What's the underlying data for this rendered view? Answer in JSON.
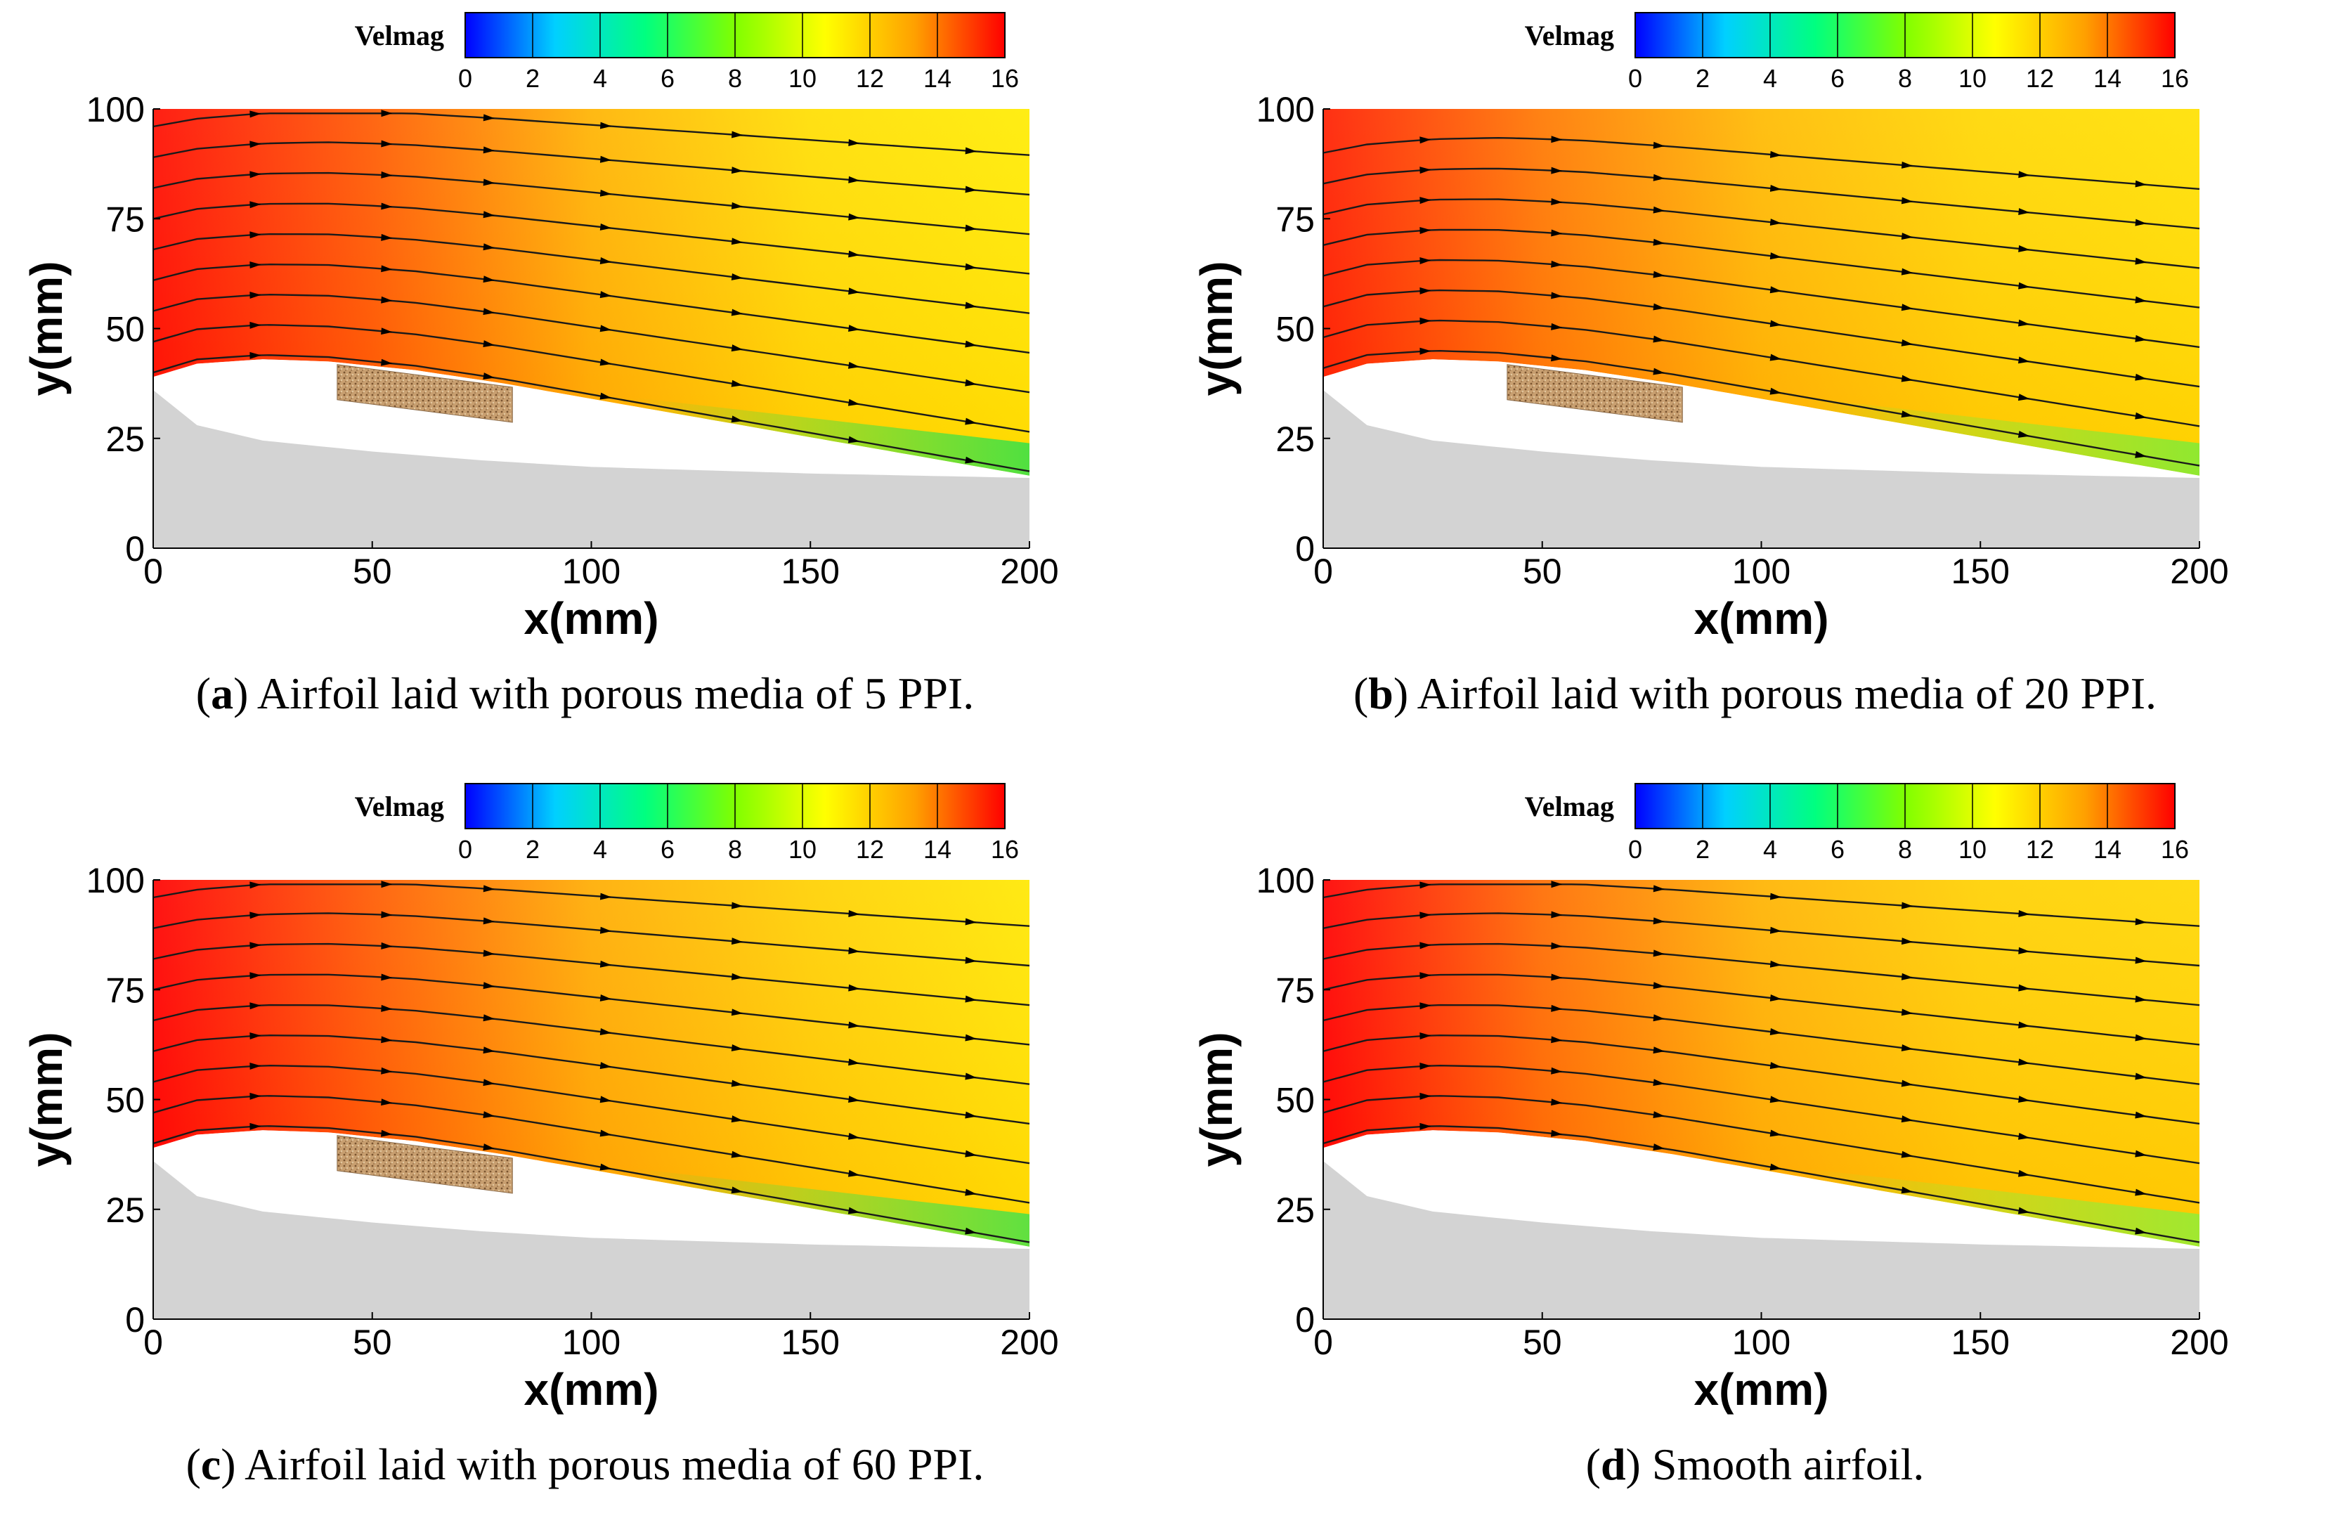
{
  "colormap": [
    "#0000ff",
    "#00d0ff",
    "#00ff80",
    "#80ff00",
    "#ffff00",
    "#ffa000",
    "#ff0000"
  ],
  "chart_data": [
    {
      "type": "heatmap",
      "id": "a",
      "caption_letter": "a",
      "caption_text": " Airfoil laid with porous media of 5 PPI.",
      "colorbar_title": "Velmag",
      "colorbar_range": [
        0,
        16
      ],
      "colorbar_ticks": [
        "0",
        "2",
        "4",
        "6",
        "8",
        "10",
        "12",
        "14",
        "16"
      ],
      "xlabel": "x(mm)",
      "ylabel": "y(mm)",
      "xlim": [
        0,
        200
      ],
      "ylim": [
        0,
        100
      ],
      "xticks": [
        "0",
        "50",
        "100",
        "150",
        "200"
      ],
      "yticks": [
        "0",
        "25",
        "50",
        "75",
        "100"
      ],
      "airfoil_upper_surface": {
        "x": [
          0,
          10,
          25,
          40,
          60,
          80,
          100,
          120,
          140,
          160,
          180,
          200
        ],
        "y": [
          39,
          42,
          43,
          42.5,
          40.5,
          37.5,
          34,
          30.5,
          27,
          23.5,
          20,
          16.5
        ]
      },
      "airfoil_lower_surface": {
        "x": [
          0,
          10,
          25,
          50,
          75,
          100,
          150,
          200
        ],
        "y": [
          36,
          28,
          24.5,
          22,
          20,
          18.5,
          17,
          16
        ]
      },
      "porous_insert": {
        "x_range": [
          42,
          82
        ],
        "thickness_mm": 8,
        "present": true
      },
      "low_speed_region_color": "#50e040",
      "streamline_y_start": [
        40,
        47,
        54,
        61,
        68,
        75,
        82,
        89,
        96
      ],
      "velocity_samples": [
        {
          "x": 0,
          "y": 45,
          "v": 15.8
        },
        {
          "x": 50,
          "y": 70,
          "v": 14.5
        },
        {
          "x": 100,
          "y": 80,
          "v": 12.8
        },
        {
          "x": 150,
          "y": 60,
          "v": 11.6
        },
        {
          "x": 190,
          "y": 95,
          "v": 11.2
        },
        {
          "x": 160,
          "y": 22,
          "v": 8.5
        }
      ]
    },
    {
      "type": "heatmap",
      "id": "b",
      "caption_letter": "b",
      "caption_text": " Airfoil laid with porous media of 20 PPI.",
      "colorbar_title": "Velmag",
      "colorbar_range": [
        0,
        16
      ],
      "colorbar_ticks": [
        "0",
        "2",
        "4",
        "6",
        "8",
        "10",
        "12",
        "14",
        "16"
      ],
      "xlabel": "x(mm)",
      "ylabel": "y(mm)",
      "xlim": [
        0,
        200
      ],
      "ylim": [
        0,
        100
      ],
      "xticks": [
        "0",
        "50",
        "100",
        "150",
        "200"
      ],
      "yticks": [
        "0",
        "25",
        "50",
        "75",
        "100"
      ],
      "airfoil_upper_surface": {
        "x": [
          0,
          10,
          25,
          40,
          60,
          80,
          100,
          120,
          140,
          160,
          180,
          200
        ],
        "y": [
          39,
          42,
          43,
          42.5,
          40.5,
          37.5,
          34,
          30.5,
          27,
          23.5,
          20,
          16.5
        ]
      },
      "airfoil_lower_surface": {
        "x": [
          0,
          10,
          25,
          50,
          75,
          100,
          150,
          200
        ],
        "y": [
          36,
          28,
          24.5,
          22,
          20,
          18.5,
          17,
          16
        ]
      },
      "porous_insert": {
        "x_range": [
          42,
          82
        ],
        "thickness_mm": 8,
        "present": true
      },
      "low_speed_region_color": "#90e830",
      "streamline_y_start": [
        41,
        48,
        55,
        62,
        69,
        76,
        83,
        90
      ],
      "velocity_samples": [
        {
          "x": 0,
          "y": 45,
          "v": 15.5
        },
        {
          "x": 50,
          "y": 70,
          "v": 14.0
        },
        {
          "x": 100,
          "y": 80,
          "v": 12.6
        },
        {
          "x": 150,
          "y": 60,
          "v": 11.8
        },
        {
          "x": 190,
          "y": 95,
          "v": 11.5
        },
        {
          "x": 160,
          "y": 22,
          "v": 9.5
        }
      ]
    },
    {
      "type": "heatmap",
      "id": "c",
      "caption_letter": "c",
      "caption_text": " Airfoil laid with porous media of 60 PPI.",
      "colorbar_title": "Velmag",
      "colorbar_range": [
        0,
        16
      ],
      "colorbar_ticks": [
        "0",
        "2",
        "4",
        "6",
        "8",
        "10",
        "12",
        "14",
        "16"
      ],
      "xlabel": "x(mm)",
      "ylabel": "y(mm)",
      "xlim": [
        0,
        200
      ],
      "ylim": [
        0,
        100
      ],
      "xticks": [
        "0",
        "50",
        "100",
        "150",
        "200"
      ],
      "yticks": [
        "0",
        "25",
        "50",
        "75",
        "100"
      ],
      "airfoil_upper_surface": {
        "x": [
          0,
          10,
          25,
          40,
          60,
          80,
          100,
          120,
          140,
          160,
          180,
          200
        ],
        "y": [
          39,
          42,
          43,
          42.5,
          40.5,
          37.5,
          34,
          30.5,
          27,
          23.5,
          20,
          16.5
        ]
      },
      "airfoil_lower_surface": {
        "x": [
          0,
          10,
          25,
          50,
          75,
          100,
          150,
          200
        ],
        "y": [
          36,
          28,
          24.5,
          22,
          20,
          18.5,
          17,
          16
        ]
      },
      "porous_insert": {
        "x_range": [
          42,
          82
        ],
        "thickness_mm": 8,
        "present": true
      },
      "low_speed_region_color": "#60e040",
      "streamline_y_start": [
        40,
        47,
        54,
        61,
        68,
        75,
        82,
        89,
        96
      ],
      "velocity_samples": [
        {
          "x": 0,
          "y": 45,
          "v": 16.0
        },
        {
          "x": 50,
          "y": 70,
          "v": 14.5
        },
        {
          "x": 100,
          "y": 80,
          "v": 13.0
        },
        {
          "x": 150,
          "y": 60,
          "v": 12.0
        },
        {
          "x": 190,
          "y": 95,
          "v": 11.3
        },
        {
          "x": 160,
          "y": 22,
          "v": 9.0
        }
      ]
    },
    {
      "type": "heatmap",
      "id": "d",
      "caption_letter": "d",
      "caption_text": " Smooth airfoil.",
      "colorbar_title": "Velmag",
      "colorbar_range": [
        0,
        16
      ],
      "colorbar_ticks": [
        "0",
        "2",
        "4",
        "6",
        "8",
        "10",
        "12",
        "14",
        "16"
      ],
      "xlabel": "x(mm)",
      "ylabel": "y(mm)",
      "xlim": [
        0,
        200
      ],
      "ylim": [
        0,
        100
      ],
      "xticks": [
        "0",
        "50",
        "100",
        "150",
        "200"
      ],
      "yticks": [
        "0",
        "25",
        "50",
        "75",
        "100"
      ],
      "airfoil_upper_surface": {
        "x": [
          0,
          10,
          25,
          40,
          60,
          80,
          100,
          120,
          140,
          160,
          180,
          200
        ],
        "y": [
          39,
          42,
          43,
          42.5,
          40.5,
          37.5,
          34,
          30.5,
          27,
          23.5,
          20,
          16.5
        ]
      },
      "airfoil_lower_surface": {
        "x": [
          0,
          10,
          25,
          50,
          75,
          100,
          150,
          200
        ],
        "y": [
          36,
          28,
          24.5,
          22,
          20,
          18.5,
          17,
          16
        ]
      },
      "porous_insert": {
        "present": false
      },
      "low_speed_region_color": "#a0e830",
      "streamline_y_start": [
        40,
        47,
        54,
        61,
        68,
        75,
        82,
        89,
        96
      ],
      "velocity_samples": [
        {
          "x": 0,
          "y": 45,
          "v": 16.0
        },
        {
          "x": 50,
          "y": 70,
          "v": 14.2
        },
        {
          "x": 100,
          "y": 80,
          "v": 12.8
        },
        {
          "x": 150,
          "y": 60,
          "v": 12.0
        },
        {
          "x": 190,
          "y": 95,
          "v": 11.8
        },
        {
          "x": 160,
          "y": 22,
          "v": 10.0
        }
      ]
    }
  ]
}
